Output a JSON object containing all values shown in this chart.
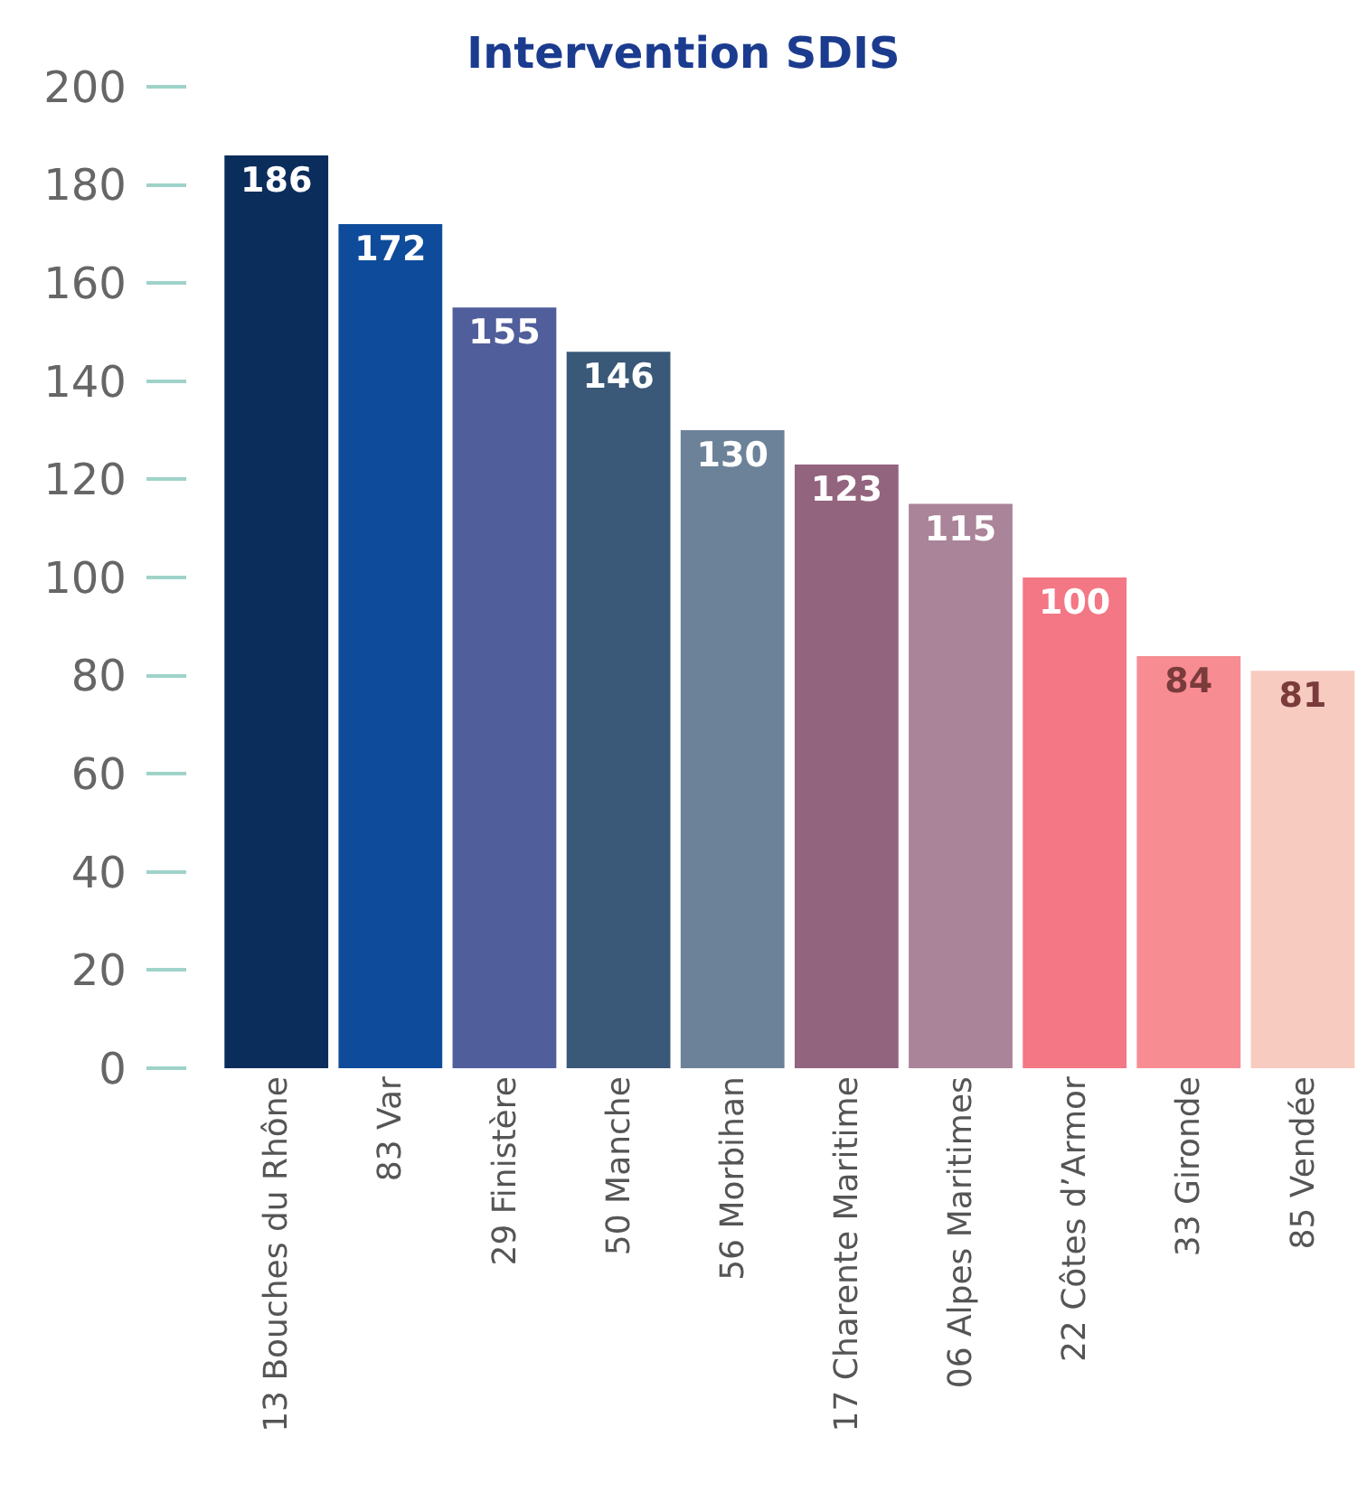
{
  "chart_data": {
    "type": "bar",
    "title": "Intervention SDIS",
    "categories": [
      "13 Bouches du Rhône",
      "83 Var",
      "29 Finistère",
      "50 Manche",
      "56 Morbihan",
      "17 Charente Maritime",
      "06 Alpes Maritimes",
      "22 Côtes d’Armor",
      "33 Gironde",
      "85 Vendée"
    ],
    "values": [
      186,
      172,
      155,
      146,
      130,
      123,
      115,
      100,
      84,
      81
    ],
    "colors": [
      "#0b2d5c",
      "#0f4b9b",
      "#505e9b",
      "#3a5877",
      "#6c8299",
      "#93647e",
      "#aa8499",
      "#f37784",
      "#f78c93",
      "#f8cbc0"
    ],
    "ylim": [
      0,
      200
    ],
    "yticks": [
      0,
      20,
      40,
      60,
      80,
      100,
      120,
      140,
      160,
      180,
      200
    ],
    "grid": false,
    "legend": false,
    "data_labels": true
  }
}
